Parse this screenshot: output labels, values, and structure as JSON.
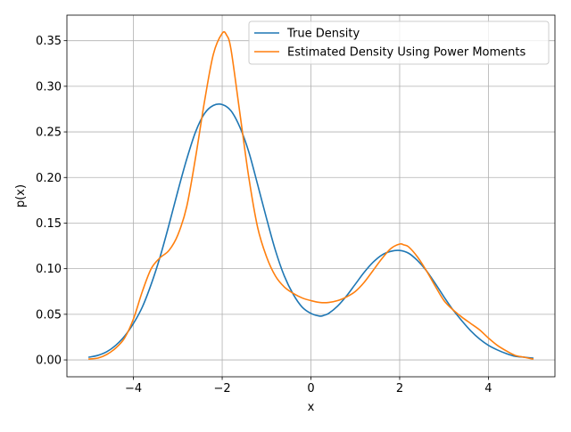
{
  "chart_data": {
    "type": "line",
    "title": "",
    "xlabel": "x",
    "ylabel": "p(x)",
    "xlim": [
      -5.5,
      5.5
    ],
    "ylim": [
      -0.0185,
      0.378
    ],
    "xticks": [
      -4,
      -2,
      0,
      2,
      4
    ],
    "xtick_labels": [
      "−4",
      "−2",
      "0",
      "2",
      "4"
    ],
    "yticks": [
      0.0,
      0.05,
      0.1,
      0.15,
      0.2,
      0.25,
      0.3,
      0.35
    ],
    "ytick_labels": [
      "0.00",
      "0.05",
      "0.10",
      "0.15",
      "0.20",
      "0.25",
      "0.30",
      "0.35"
    ],
    "grid": true,
    "legend_position": "top-right",
    "series": [
      {
        "name": "True Density",
        "color": "#1f77b4",
        "x": [
          -5.0,
          -4.8,
          -4.6,
          -4.4,
          -4.2,
          -4.0,
          -3.8,
          -3.6,
          -3.4,
          -3.2,
          -3.0,
          -2.8,
          -2.6,
          -2.4,
          -2.2,
          -2.0,
          -1.8,
          -1.6,
          -1.4,
          -1.2,
          -1.0,
          -0.8,
          -0.6,
          -0.4,
          -0.2,
          0.0,
          0.2,
          0.3,
          0.4,
          0.6,
          0.8,
          1.0,
          1.2,
          1.4,
          1.6,
          1.8,
          2.0,
          2.2,
          2.4,
          2.6,
          2.8,
          3.0,
          3.2,
          3.4,
          3.6,
          3.8,
          4.0,
          4.2,
          4.4,
          4.6,
          4.8,
          5.0
        ],
        "y": [
          0.003,
          0.005,
          0.009,
          0.016,
          0.026,
          0.04,
          0.058,
          0.083,
          0.113,
          0.148,
          0.185,
          0.22,
          0.25,
          0.27,
          0.279,
          0.28,
          0.273,
          0.255,
          0.228,
          0.192,
          0.155,
          0.12,
          0.092,
          0.072,
          0.058,
          0.051,
          0.048,
          0.049,
          0.051,
          0.059,
          0.07,
          0.083,
          0.096,
          0.107,
          0.115,
          0.119,
          0.12,
          0.117,
          0.109,
          0.098,
          0.084,
          0.069,
          0.055,
          0.043,
          0.032,
          0.023,
          0.016,
          0.011,
          0.007,
          0.004,
          0.003,
          0.002
        ]
      },
      {
        "name": "Estimated Density Using Power Moments",
        "color": "#ff7f0e",
        "x": [
          -5.0,
          -4.8,
          -4.6,
          -4.4,
          -4.2,
          -4.0,
          -3.8,
          -3.6,
          -3.4,
          -3.2,
          -3.0,
          -2.8,
          -2.6,
          -2.4,
          -2.2,
          -2.0,
          -1.9,
          -1.8,
          -1.6,
          -1.4,
          -1.2,
          -1.0,
          -0.8,
          -0.6,
          -0.4,
          -0.2,
          0.0,
          0.2,
          0.4,
          0.6,
          0.8,
          1.0,
          1.2,
          1.4,
          1.6,
          1.8,
          2.0,
          2.1,
          2.2,
          2.4,
          2.6,
          2.8,
          3.0,
          3.2,
          3.4,
          3.6,
          3.8,
          4.0,
          4.2,
          4.4,
          4.6,
          4.8,
          5.0
        ],
        "y": [
          0.001,
          0.002,
          0.006,
          0.013,
          0.024,
          0.045,
          0.075,
          0.1,
          0.112,
          0.12,
          0.137,
          0.168,
          0.222,
          0.283,
          0.335,
          0.358,
          0.356,
          0.34,
          0.27,
          0.2,
          0.145,
          0.113,
          0.092,
          0.08,
          0.073,
          0.068,
          0.065,
          0.063,
          0.063,
          0.065,
          0.069,
          0.075,
          0.085,
          0.098,
          0.111,
          0.122,
          0.127,
          0.126,
          0.124,
          0.113,
          0.098,
          0.081,
          0.065,
          0.055,
          0.047,
          0.04,
          0.033,
          0.024,
          0.016,
          0.01,
          0.005,
          0.003,
          0.001
        ]
      }
    ]
  }
}
